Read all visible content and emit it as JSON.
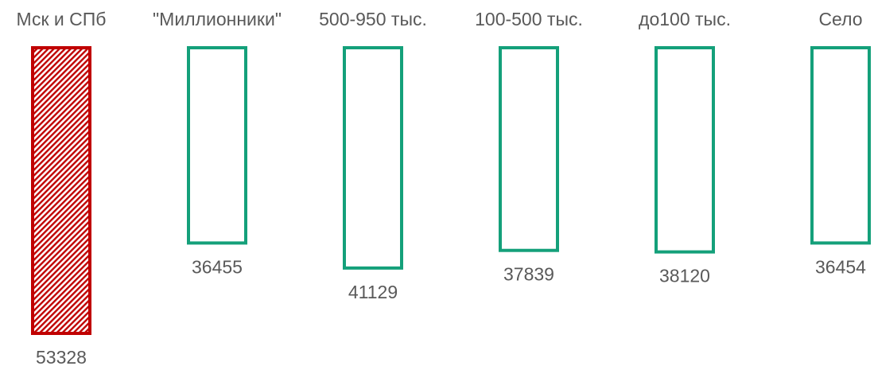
{
  "chart_data": {
    "type": "bar",
    "orientation": "vertical",
    "categories": [
      "Мск и СПб",
      "\"Миллионники\"",
      "500-950 тыс.",
      "100-500 тыс.",
      "до100 тыс.",
      "Село"
    ],
    "values": [
      53328,
      36455,
      41129,
      37839,
      38120,
      36454
    ],
    "value_labels": [
      "53328",
      "36455",
      "41129",
      "37839",
      "38120",
      "36454"
    ],
    "title": "",
    "xlabel": "",
    "ylabel": "",
    "ylim": [
      0,
      53328
    ],
    "grid": false,
    "legend": "none",
    "category_labels_position": "top",
    "value_labels_position": "below",
    "styles": [
      {
        "fill": "hatched",
        "color": "#c00000"
      },
      {
        "fill": "none",
        "color": "#14a07a"
      },
      {
        "fill": "none",
        "color": "#14a07a"
      },
      {
        "fill": "none",
        "color": "#14a07a"
      },
      {
        "fill": "none",
        "color": "#14a07a"
      },
      {
        "fill": "none",
        "color": "#14a07a"
      }
    ]
  }
}
